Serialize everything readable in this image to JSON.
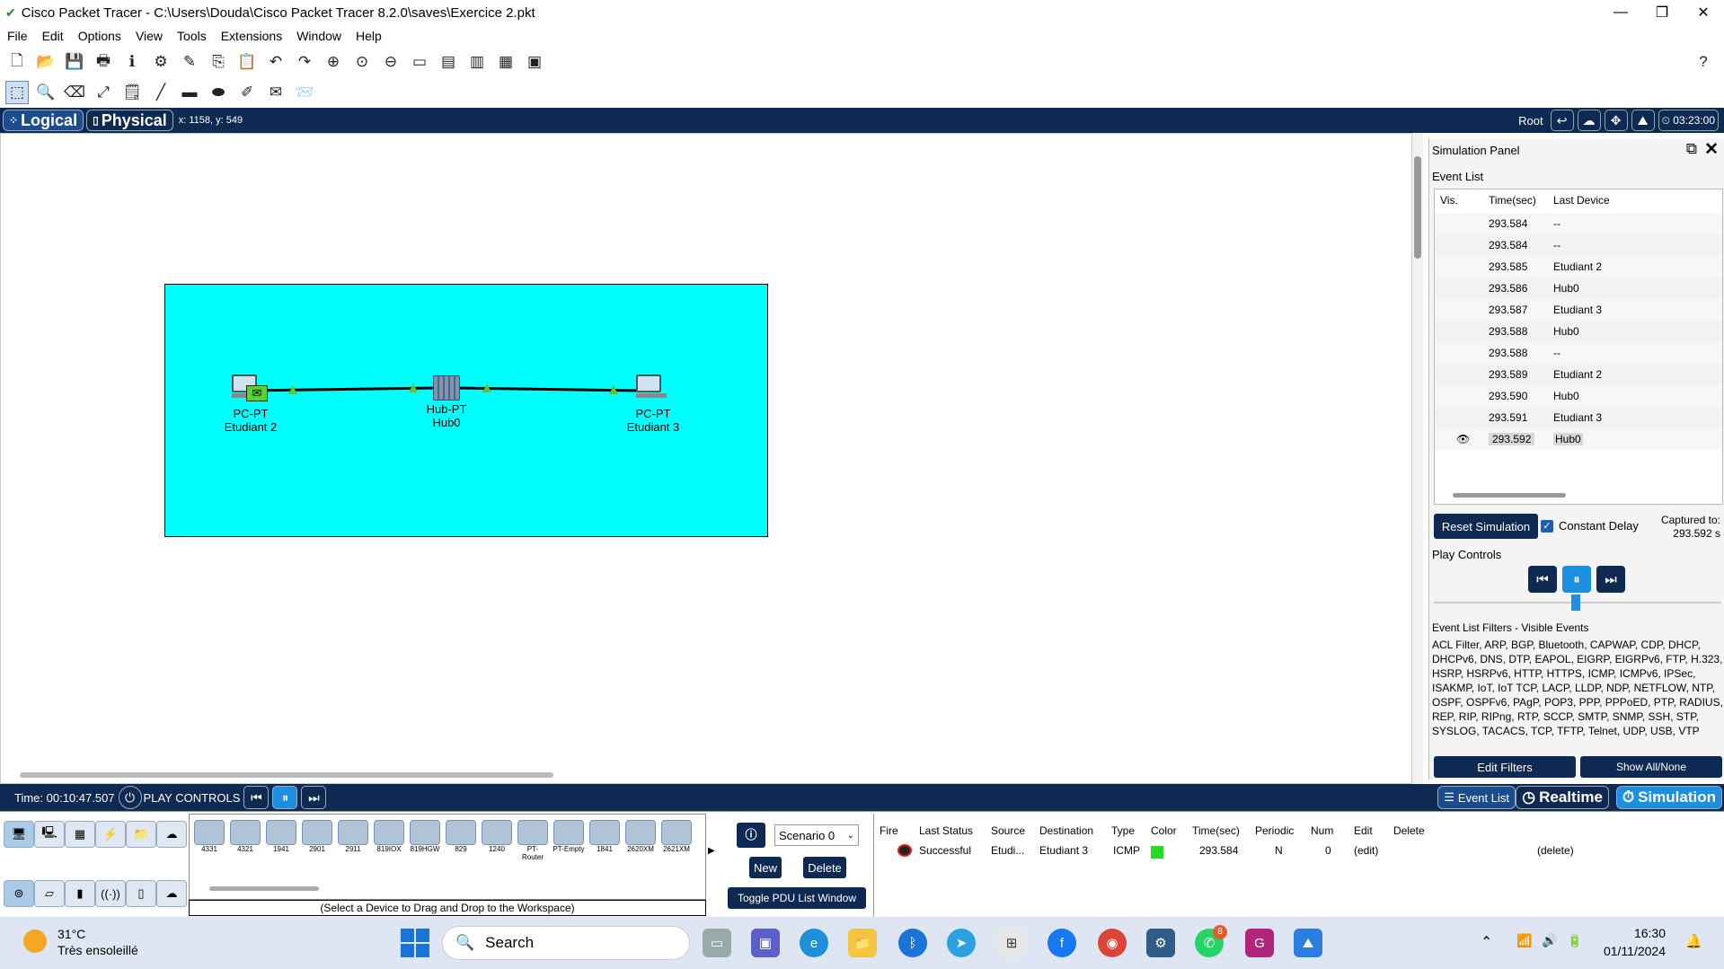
{
  "window": {
    "title": "Cisco Packet Tracer - C:\\Users\\Douda\\Cisco Packet Tracer 8.2.0\\saves\\Exercice 2.pkt"
  },
  "menu": [
    "File",
    "Edit",
    "Options",
    "View",
    "Tools",
    "Extensions",
    "Window",
    "Help"
  ],
  "nav": {
    "logical": "Logical",
    "physical": "Physical",
    "coords": "x: 1158, y: 549",
    "root": "Root",
    "clock": "03:23:00"
  },
  "workspace": {
    "devices": [
      {
        "type": "PC-PT",
        "name": "Etudiant 2"
      },
      {
        "type": "Hub-PT",
        "name": "Hub0"
      },
      {
        "type": "PC-PT",
        "name": "Etudiant 3"
      }
    ],
    "colors": {
      "cluster": "#00ffff",
      "link_indicator": "#6abf2e"
    }
  },
  "sim": {
    "title": "Simulation Panel",
    "event_list_label": "Event List",
    "headers": [
      "Vis.",
      "Time(sec)",
      "Last Device"
    ],
    "events": [
      {
        "time": "293.584",
        "device": "--"
      },
      {
        "time": "293.584",
        "device": "--"
      },
      {
        "time": "293.585",
        "device": "Etudiant 2"
      },
      {
        "time": "293.586",
        "device": "Hub0"
      },
      {
        "time": "293.587",
        "device": "Etudiant 3"
      },
      {
        "time": "293.588",
        "device": "Hub0"
      },
      {
        "time": "293.588",
        "device": "--"
      },
      {
        "time": "293.589",
        "device": "Etudiant 2"
      },
      {
        "time": "293.590",
        "device": "Hub0"
      },
      {
        "time": "293.591",
        "device": "Etudiant 3"
      },
      {
        "time": "293.592",
        "device": "Hub0"
      }
    ],
    "reset": "Reset Simulation",
    "constant_delay": "Constant Delay",
    "captured_label": "Captured to:",
    "captured_value": "293.592 s",
    "play_controls": "Play Controls",
    "filters_title": "Event List Filters - Visible Events",
    "filters_text": "ACL Filter, ARP, BGP, Bluetooth, CAPWAP, CDP, DHCP, DHCPv6, DNS, DTP, EAPOL, EIGRP, EIGRPv6, FTP, H.323, HSRP, HSRPv6, HTTP, HTTPS, ICMP, ICMPv6, IPSec, ISAKMP, IoT, IoT TCP, LACP, LLDP, NDP, NETFLOW, NTP, OSPF, OSPFv6, PAgP, POP3, PPP, PPPoED, PTP, RADIUS, REP, RIP, RIPng, RTP, SCCP, SMTP, SNMP, SSH, STP, SYSLOG, TACACS, TCP, TFTP, Telnet, UDP, USB, VTP",
    "edit_filters": "Edit Filters",
    "show_all": "Show All/None"
  },
  "bottom": {
    "time": "Time: 00:10:47.507",
    "play_controls": "PLAY CONTROLS",
    "event_list": "Event List",
    "realtime": "Realtime",
    "simulation": "Simulation"
  },
  "devices_panel": {
    "models": [
      "4331",
      "4321",
      "1941",
      "2901",
      "2911",
      "819IOX",
      "819HGW",
      "829",
      "1240",
      "PT-Router",
      "PT-Empty",
      "1841",
      "2620XM",
      "2621XM"
    ],
    "hint": "(Select a Device to Drag and Drop to the Workspace)"
  },
  "scenario": {
    "label": "Scenario 0",
    "new": "New",
    "delete": "Delete",
    "toggle": "Toggle PDU List Window"
  },
  "pdu": {
    "headers": [
      "Fire",
      "Last Status",
      "Source",
      "Destination",
      "Type",
      "Color",
      "Time(sec)",
      "Periodic",
      "Num",
      "Edit",
      "Delete"
    ],
    "row": {
      "status": "Successful",
      "source": "Etudi...",
      "destination": "Etudiant 3",
      "type": "ICMP",
      "color": "#22dd22",
      "time": "293.584",
      "periodic": "N",
      "num": "0",
      "edit": "(edit)",
      "delete": "(delete)"
    }
  },
  "taskbar": {
    "temp": "31°C",
    "weather": "Très ensoleillé",
    "search": "Search",
    "badge": "8",
    "time": "16:30",
    "date": "01/11/2024"
  }
}
